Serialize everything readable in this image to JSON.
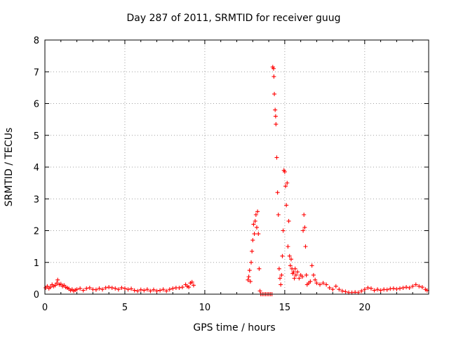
{
  "chart_data": {
    "type": "scatter",
    "title": "Day 287 of 2011, SRMTID for receiver guug",
    "xlabel": "GPS time / hours",
    "ylabel": "SRMTID / TECUs",
    "xlim": [
      0,
      24
    ],
    "ylim": [
      0,
      8
    ],
    "x_ticks": [
      0,
      5,
      10,
      15,
      20
    ],
    "y_ticks": [
      0,
      1,
      2,
      3,
      4,
      5,
      6,
      7,
      8
    ],
    "grid": true,
    "marker": "+",
    "color": "#ff0000",
    "series": [
      {
        "points": [
          [
            0.05,
            0.2
          ],
          [
            0.15,
            0.25
          ],
          [
            0.25,
            0.18
          ],
          [
            0.35,
            0.22
          ],
          [
            0.45,
            0.3
          ],
          [
            0.55,
            0.25
          ],
          [
            0.65,
            0.28
          ],
          [
            0.75,
            0.35
          ],
          [
            0.8,
            0.45
          ],
          [
            0.9,
            0.3
          ],
          [
            1.0,
            0.32
          ],
          [
            1.1,
            0.25
          ],
          [
            1.2,
            0.28
          ],
          [
            1.3,
            0.22
          ],
          [
            1.4,
            0.2
          ],
          [
            1.5,
            0.17
          ],
          [
            1.6,
            0.12
          ],
          [
            1.7,
            0.15
          ],
          [
            1.8,
            0.1
          ],
          [
            1.9,
            0.13
          ],
          [
            2.0,
            0.15
          ],
          [
            2.2,
            0.18
          ],
          [
            2.4,
            0.12
          ],
          [
            2.6,
            0.18
          ],
          [
            2.8,
            0.2
          ],
          [
            3.0,
            0.15
          ],
          [
            3.2,
            0.14
          ],
          [
            3.4,
            0.18
          ],
          [
            3.6,
            0.15
          ],
          [
            3.8,
            0.2
          ],
          [
            4.0,
            0.22
          ],
          [
            4.2,
            0.2
          ],
          [
            4.4,
            0.18
          ],
          [
            4.6,
            0.15
          ],
          [
            4.8,
            0.2
          ],
          [
            5.0,
            0.18
          ],
          [
            5.2,
            0.15
          ],
          [
            5.4,
            0.17
          ],
          [
            5.6,
            0.12
          ],
          [
            5.8,
            0.1
          ],
          [
            6.0,
            0.14
          ],
          [
            6.2,
            0.12
          ],
          [
            6.4,
            0.15
          ],
          [
            6.6,
            0.1
          ],
          [
            6.8,
            0.14
          ],
          [
            7.0,
            0.1
          ],
          [
            7.2,
            0.12
          ],
          [
            7.4,
            0.15
          ],
          [
            7.6,
            0.1
          ],
          [
            7.8,
            0.15
          ],
          [
            8.0,
            0.18
          ],
          [
            8.2,
            0.2
          ],
          [
            8.4,
            0.2
          ],
          [
            8.6,
            0.22
          ],
          [
            8.8,
            0.3
          ],
          [
            8.9,
            0.25
          ],
          [
            9.0,
            0.22
          ],
          [
            9.1,
            0.35
          ],
          [
            9.2,
            0.38
          ],
          [
            9.3,
            0.28
          ],
          [
            12.7,
            0.45
          ],
          [
            12.75,
            0.55
          ],
          [
            12.8,
            0.75
          ],
          [
            12.85,
            0.4
          ],
          [
            12.9,
            1.0
          ],
          [
            12.95,
            1.35
          ],
          [
            13.0,
            1.7
          ],
          [
            13.05,
            2.2
          ],
          [
            13.1,
            1.9
          ],
          [
            13.15,
            2.3
          ],
          [
            13.2,
            2.5
          ],
          [
            13.25,
            2.1
          ],
          [
            13.3,
            2.6
          ],
          [
            13.35,
            1.9
          ],
          [
            13.4,
            0.8
          ],
          [
            13.45,
            0.1
          ],
          [
            13.5,
            0.0
          ],
          [
            13.6,
            0.0
          ],
          [
            13.7,
            0.0
          ],
          [
            13.8,
            0.0
          ],
          [
            13.9,
            0.0
          ],
          [
            14.0,
            0.0
          ],
          [
            14.1,
            0.0
          ],
          [
            14.2,
            0.0
          ],
          [
            14.25,
            7.15
          ],
          [
            14.3,
            7.1
          ],
          [
            14.32,
            6.85
          ],
          [
            14.35,
            6.3
          ],
          [
            14.4,
            5.8
          ],
          [
            14.43,
            5.6
          ],
          [
            14.45,
            5.35
          ],
          [
            14.5,
            4.3
          ],
          [
            14.55,
            3.2
          ],
          [
            14.6,
            2.5
          ],
          [
            14.65,
            0.8
          ],
          [
            14.7,
            0.5
          ],
          [
            14.75,
            0.3
          ],
          [
            14.8,
            0.6
          ],
          [
            14.85,
            1.2
          ],
          [
            14.9,
            2.0
          ],
          [
            14.95,
            3.9
          ],
          [
            15.0,
            3.85
          ],
          [
            15.05,
            3.4
          ],
          [
            15.1,
            2.8
          ],
          [
            15.15,
            3.5
          ],
          [
            15.2,
            1.5
          ],
          [
            15.25,
            2.3
          ],
          [
            15.3,
            1.2
          ],
          [
            15.35,
            0.9
          ],
          [
            15.4,
            1.1
          ],
          [
            15.45,
            0.8
          ],
          [
            15.5,
            0.65
          ],
          [
            15.55,
            0.7
          ],
          [
            15.6,
            0.5
          ],
          [
            15.65,
            0.8
          ],
          [
            15.7,
            0.6
          ],
          [
            15.8,
            0.7
          ],
          [
            15.9,
            0.5
          ],
          [
            16.0,
            0.6
          ],
          [
            16.1,
            0.55
          ],
          [
            16.15,
            2.0
          ],
          [
            16.2,
            2.5
          ],
          [
            16.25,
            2.1
          ],
          [
            16.3,
            1.5
          ],
          [
            16.35,
            0.6
          ],
          [
            16.4,
            0.3
          ],
          [
            16.5,
            0.35
          ],
          [
            16.6,
            0.4
          ],
          [
            16.7,
            0.9
          ],
          [
            16.8,
            0.6
          ],
          [
            16.9,
            0.45
          ],
          [
            17.0,
            0.35
          ],
          [
            17.2,
            0.3
          ],
          [
            17.4,
            0.35
          ],
          [
            17.6,
            0.3
          ],
          [
            17.8,
            0.2
          ],
          [
            18.0,
            0.15
          ],
          [
            18.2,
            0.25
          ],
          [
            18.4,
            0.15
          ],
          [
            18.6,
            0.1
          ],
          [
            18.8,
            0.08
          ],
          [
            19.0,
            0.05
          ],
          [
            19.2,
            0.05
          ],
          [
            19.4,
            0.06
          ],
          [
            19.6,
            0.05
          ],
          [
            19.8,
            0.1
          ],
          [
            20.0,
            0.15
          ],
          [
            20.2,
            0.2
          ],
          [
            20.4,
            0.18
          ],
          [
            20.6,
            0.12
          ],
          [
            20.8,
            0.15
          ],
          [
            21.0,
            0.12
          ],
          [
            21.2,
            0.15
          ],
          [
            21.4,
            0.14
          ],
          [
            21.6,
            0.17
          ],
          [
            21.8,
            0.18
          ],
          [
            22.0,
            0.16
          ],
          [
            22.2,
            0.18
          ],
          [
            22.4,
            0.2
          ],
          [
            22.6,
            0.22
          ],
          [
            22.8,
            0.2
          ],
          [
            23.0,
            0.25
          ],
          [
            23.2,
            0.3
          ],
          [
            23.4,
            0.25
          ],
          [
            23.6,
            0.22
          ],
          [
            23.8,
            0.15
          ],
          [
            23.9,
            0.12
          ]
        ]
      }
    ]
  }
}
